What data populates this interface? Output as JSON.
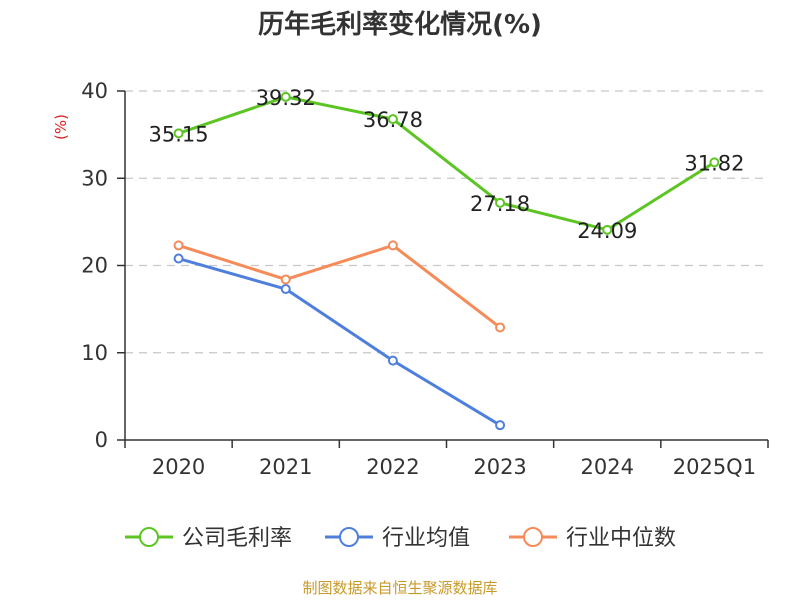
{
  "colors": {
    "company": "#5cc524",
    "industry_avg": "#4f7fdd",
    "industry_median": "#f58b58",
    "axis": "#333333",
    "grid": "#c8c8c8",
    "unit": "#e02020",
    "source": "#c89a2a"
  },
  "chart_data": {
    "type": "line",
    "title": "历年毛利率变化情况(%)",
    "ylabel": "(%)",
    "xlabel": "",
    "categories": [
      "2020",
      "2021",
      "2022",
      "2023",
      "2024",
      "2025Q1"
    ],
    "ylim": [
      0,
      40
    ],
    "yticks": [
      0,
      10,
      20,
      30,
      40
    ],
    "grid": true,
    "legend_position": "bottom",
    "series": [
      {
        "name": "公司毛利率",
        "color_key": "company",
        "values": [
          35.15,
          39.32,
          36.78,
          27.18,
          24.09,
          31.82
        ],
        "labels": [
          "35.15",
          "39.32",
          "36.78",
          "27.18",
          "24.09",
          "31.82"
        ]
      },
      {
        "name": "行业均值",
        "color_key": "industry_avg",
        "values": [
          20.8,
          17.3,
          9.1,
          1.7,
          null,
          null
        ],
        "labels": null
      },
      {
        "name": "行业中位数",
        "color_key": "industry_median",
        "values": [
          22.3,
          18.4,
          22.3,
          12.9,
          null,
          null
        ],
        "labels": null
      }
    ]
  },
  "source": "制图数据来自恒生聚源数据库"
}
